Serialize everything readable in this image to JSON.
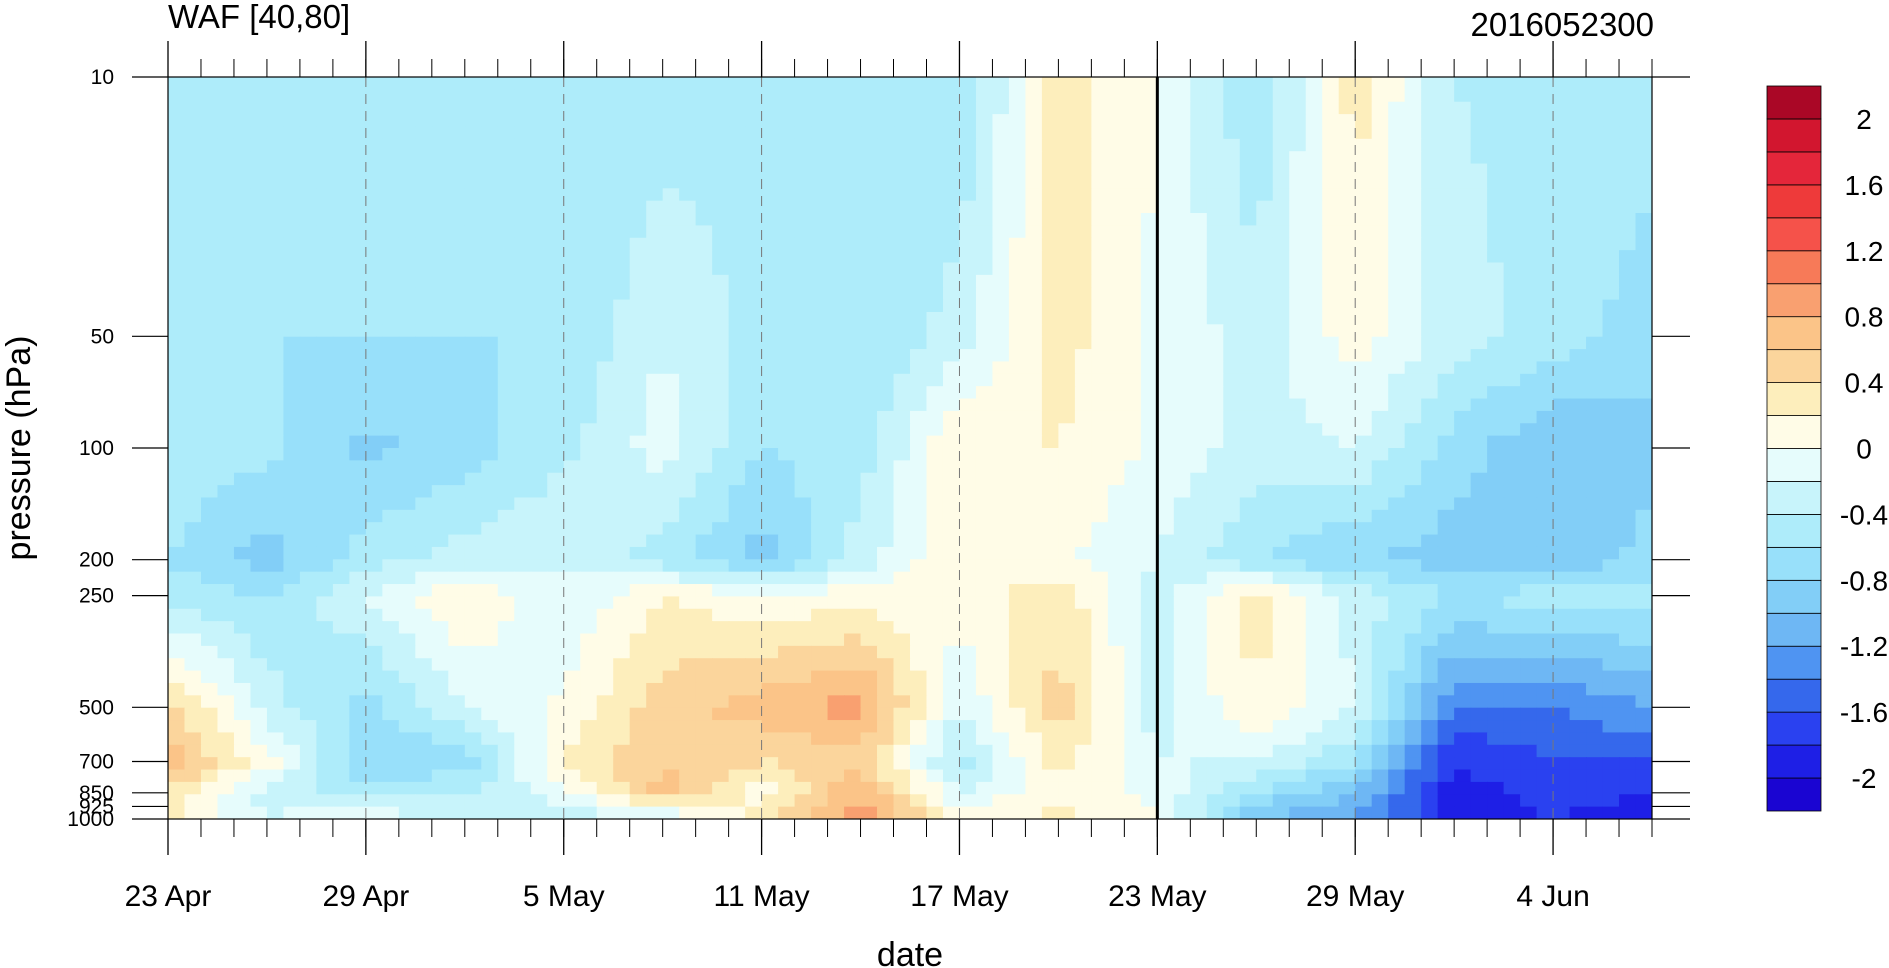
{
  "chart_data": {
    "type": "heatmap",
    "title_left": "WAF [40,80]",
    "title_right": "2016052300",
    "xlabel": "date",
    "ylabel": "pressure (hPa)",
    "x_ticks": [
      {
        "date": "2016-04-23",
        "label": "23 Apr"
      },
      {
        "date": "2016-04-29",
        "label": "29 Apr"
      },
      {
        "date": "2016-05-05",
        "label": "5 May"
      },
      {
        "date": "2016-05-11",
        "label": "11 May"
      },
      {
        "date": "2016-05-17",
        "label": "17 May"
      },
      {
        "date": "2016-05-23",
        "label": "23 May"
      },
      {
        "date": "2016-05-29",
        "label": "29 May"
      },
      {
        "date": "2016-06-04",
        "label": "4 Jun"
      }
    ],
    "x_range": [
      "2016-04-23",
      "2016-06-07"
    ],
    "x_minor_step_days": 1,
    "marker_date": "2016-05-23",
    "y_scale": "log",
    "y_range": [
      1000,
      10
    ],
    "y_ticks": [
      {
        "value": 10,
        "label": "10"
      },
      {
        "value": 50,
        "label": "50"
      },
      {
        "value": 100,
        "label": "100"
      },
      {
        "value": 200,
        "label": "200"
      },
      {
        "value": 250,
        "label": "250"
      },
      {
        "value": 500,
        "label": "500"
      },
      {
        "value": 700,
        "label": "700"
      },
      {
        "value": 850,
        "label": "850"
      },
      {
        "value": 925,
        "label": "925"
      },
      {
        "value": 1000,
        "label": "1000"
      }
    ],
    "contour_levels": [
      -2.2,
      -2,
      -1.8,
      -1.6,
      -1.4,
      -1.2,
      -1,
      -0.8,
      -0.6,
      -0.4,
      -0.2,
      0,
      0.2,
      0.4,
      0.6,
      0.8,
      1,
      1.2,
      1.4,
      1.6,
      1.8,
      2,
      2.2
    ],
    "colorbar": {
      "colors": [
        "#1a05d2",
        "#1e1fe6",
        "#2a41f0",
        "#3568ec",
        "#4f94f2",
        "#6eb7f4",
        "#82cef7",
        "#98e0fa",
        "#aeecfa",
        "#c8f4fb",
        "#e6fcfc",
        "#fffce7",
        "#fdeebc",
        "#fbd59c",
        "#fbc488",
        "#f9a070",
        "#f77a58",
        "#f5524a",
        "#ee3a3a",
        "#e4263a",
        "#d2162f",
        "#aa0726"
      ],
      "labels": [
        "2",
        "1.6",
        "1.2",
        "0.8",
        "0.4",
        "0",
        "-0.4",
        "-0.8",
        "-1.2",
        "-1.6",
        "-2"
      ]
    },
    "grid": "dashed vertical lines at labeled dates",
    "sample_grid": {
      "dates": [
        "2016-04-23",
        "2016-04-26",
        "2016-04-29",
        "2016-05-02",
        "2016-05-05",
        "2016-05-08",
        "2016-05-11",
        "2016-05-14",
        "2016-05-17",
        "2016-05-20",
        "2016-05-23",
        "2016-05-26",
        "2016-05-29",
        "2016-06-01",
        "2016-06-04",
        "2016-06-07"
      ],
      "pressures": [
        10,
        50,
        100,
        200,
        250,
        500,
        700,
        850,
        1000
      ],
      "values": [
        [
          -0.45,
          -0.55,
          -0.55,
          -0.6,
          -0.6,
          -0.55,
          -0.45,
          -0.55,
          -0.6,
          0.3,
          0.0,
          -0.6,
          0.3,
          -0.4,
          -0.5,
          -0.5
        ],
        [
          -0.6,
          -0.6,
          -0.6,
          -0.6,
          -0.6,
          -0.2,
          -0.5,
          -0.6,
          -0.3,
          0.3,
          -0.05,
          -0.3,
          0.1,
          -0.3,
          -0.5,
          -0.7
        ],
        [
          -0.45,
          -0.55,
          -0.85,
          -0.7,
          -0.45,
          -0.1,
          -0.6,
          -0.5,
          0.2,
          0.2,
          -0.05,
          -0.3,
          -0.2,
          -0.7,
          -1.0,
          -0.9
        ],
        [
          -0.6,
          -0.9,
          -0.5,
          -0.3,
          -0.2,
          -0.5,
          -0.9,
          -0.3,
          0.2,
          0.05,
          -0.2,
          -0.6,
          -0.8,
          -0.9,
          -1.0,
          -0.7
        ],
        [
          -0.5,
          -0.6,
          -0.2,
          0.2,
          -0.2,
          0.2,
          0.05,
          0.1,
          0.1,
          0.35,
          -0.3,
          0.3,
          -0.3,
          -0.6,
          -0.5,
          -0.5
        ],
        [
          0.5,
          -0.3,
          -0.7,
          -0.2,
          0.05,
          0.5,
          0.7,
          0.9,
          -0.2,
          0.5,
          -0.3,
          0.2,
          -0.2,
          -1.4,
          -1.4,
          -1.2
        ],
        [
          0.7,
          0.1,
          -0.8,
          -0.7,
          0.2,
          0.6,
          0.4,
          0.5,
          -0.5,
          0.3,
          -0.2,
          -0.2,
          -0.6,
          -1.8,
          -1.6,
          -1.6
        ],
        [
          0.4,
          -0.3,
          -0.5,
          -0.4,
          -0.1,
          0.7,
          0.1,
          0.8,
          -0.2,
          0.1,
          -0.05,
          -0.6,
          -1.0,
          -1.9,
          -1.7,
          -1.8
        ],
        [
          0.2,
          -0.2,
          0.05,
          -0.4,
          -0.3,
          -0.3,
          0.3,
          1.0,
          0.1,
          0.3,
          0.0,
          -1.0,
          -1.2,
          -1.9,
          -1.8,
          -1.9
        ]
      ]
    }
  }
}
